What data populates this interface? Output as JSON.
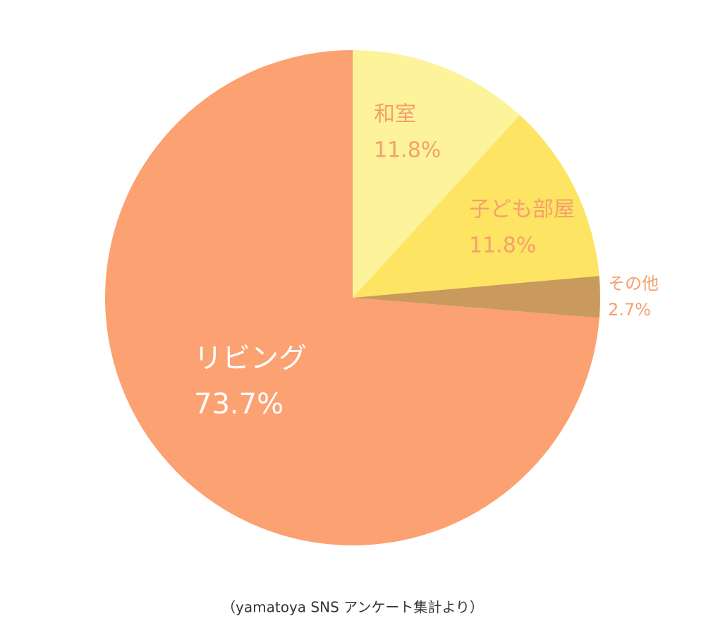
{
  "chart_data": {
    "type": "pie",
    "categories": [
      "和室",
      "子ども部屋",
      "その他",
      "リビング"
    ],
    "values": [
      11.8,
      11.8,
      2.7,
      73.7
    ],
    "value_labels": [
      "11.8%",
      "11.8%",
      "2.7%",
      "73.7%"
    ],
    "colors": [
      "#fdf39b",
      "#fde462",
      "#c99a5b",
      "#fca171"
    ],
    "source": "（yamatoya SNS アンケート集計より）"
  }
}
